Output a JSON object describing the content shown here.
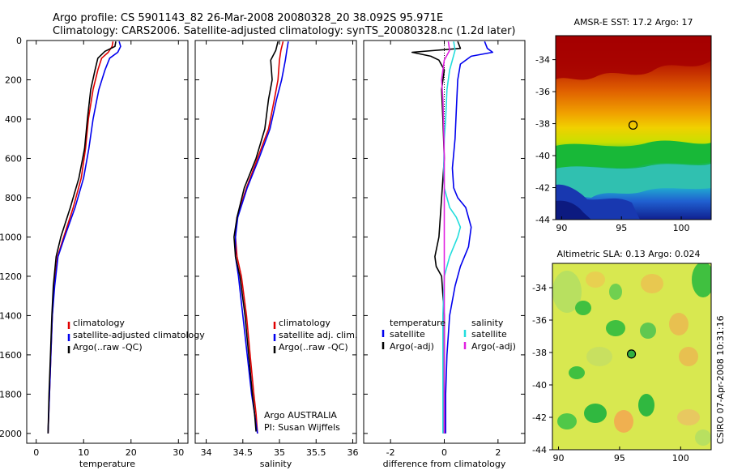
{
  "figure": {
    "title_line1": "Argo profile: CS 5901143_82 26-Mar-2008 20080328_20 38.092S 95.971E",
    "title_line2": "Climatology: CARS2006. Satellite-adjusted climatology: synTS_20080328.nc (1.2d later)",
    "side_note": "CSIRO 07-Apr-2008 10:31:16",
    "colors": {
      "climatology": "#e00000",
      "satellite": "#0000ee",
      "argo": "#000000",
      "sat_sal": "#22dddd",
      "argo_sal": "#e020e0"
    }
  },
  "chart_data": [
    {
      "id": "temperature",
      "type": "line",
      "xlabel": "temperature",
      "ylabel": "",
      "xlim": [
        -2,
        32
      ],
      "ylim": [
        2050,
        0
      ],
      "xticks": [
        0,
        10,
        20,
        30
      ],
      "yticks": [
        0,
        200,
        400,
        600,
        800,
        1000,
        1200,
        1400,
        1600,
        1800,
        2000
      ],
      "legend": [
        "climatology",
        "satellite-adjusted climatology",
        "Argo(..raw -QC)"
      ],
      "legend_placement": "lower-left",
      "series": [
        {
          "name": "climatology",
          "color": "#e00000",
          "x": [
            16.2,
            16.0,
            15.2,
            13.8,
            13.0,
            12.0,
            11.0,
            10.4,
            9.5,
            7.8,
            5.8,
            4.5,
            3.8,
            3.4,
            3.1,
            2.8,
            2.5
          ],
          "y": [
            5,
            30,
            60,
            90,
            150,
            250,
            400,
            550,
            700,
            850,
            1000,
            1100,
            1250,
            1400,
            1600,
            1800,
            2000
          ]
        },
        {
          "name": "satellite-adjusted climatology",
          "color": "#0000ee",
          "x": [
            17.5,
            17.8,
            17.2,
            15.5,
            14.5,
            13.2,
            12.0,
            11.1,
            10.0,
            8.2,
            6.0,
            4.6,
            3.9,
            3.4,
            3.1,
            2.8,
            2.5
          ],
          "y": [
            5,
            30,
            60,
            90,
            150,
            250,
            400,
            550,
            700,
            850,
            1000,
            1100,
            1250,
            1400,
            1600,
            1800,
            2000
          ]
        },
        {
          "name": "Argo(..raw -QC)",
          "color": "#000000",
          "x": [
            16.8,
            16.6,
            14.5,
            13.0,
            12.4,
            11.5,
            10.8,
            10.2,
            9.0,
            7.2,
            5.2,
            4.2,
            3.6,
            3.3,
            3.0,
            2.7,
            2.5
          ],
          "y": [
            5,
            30,
            55,
            90,
            150,
            250,
            400,
            550,
            700,
            850,
            1000,
            1100,
            1250,
            1400,
            1600,
            1800,
            2000
          ]
        }
      ]
    },
    {
      "id": "salinity",
      "type": "line",
      "xlabel": "salinity",
      "ylabel": "",
      "xlim": [
        33.85,
        36.05
      ],
      "ylim": [
        2050,
        0
      ],
      "xticks": [
        34,
        34.5,
        35,
        35.5,
        36
      ],
      "yticks": [
        0,
        200,
        400,
        600,
        800,
        1000,
        1200,
        1400,
        1600,
        1800,
        2000
      ],
      "legend": [
        "climatology",
        "satellite adj. clim.",
        "Argo(..raw -QC)"
      ],
      "legend_placement": "lower-right",
      "annotation": [
        "Argo AUSTRALIA",
        "PI: Susan Wijffels"
      ],
      "series": [
        {
          "name": "climatology",
          "color": "#e00000",
          "x": [
            35.05,
            35.02,
            35.0,
            34.98,
            34.93,
            34.85,
            34.7,
            34.55,
            34.42,
            34.4,
            34.42,
            34.48,
            34.55,
            34.6,
            34.65,
            34.68,
            34.7
          ],
          "y": [
            5,
            50,
            100,
            200,
            300,
            450,
            600,
            750,
            900,
            1000,
            1100,
            1200,
            1400,
            1600,
            1800,
            1900,
            2000
          ]
        },
        {
          "name": "satellite adj. clim.",
          "color": "#0000ee",
          "x": [
            35.12,
            35.1,
            35.08,
            35.03,
            34.96,
            34.87,
            34.72,
            34.56,
            34.43,
            34.4,
            34.4,
            34.44,
            34.5,
            34.56,
            34.62,
            34.66,
            34.7
          ],
          "y": [
            5,
            50,
            100,
            200,
            300,
            450,
            600,
            750,
            900,
            1000,
            1100,
            1200,
            1400,
            1600,
            1800,
            1900,
            2000
          ]
        },
        {
          "name": "Argo(..raw -QC)",
          "color": "#000000",
          "x": [
            34.98,
            34.95,
            34.88,
            34.9,
            34.85,
            34.8,
            34.68,
            34.52,
            34.42,
            34.38,
            34.4,
            34.46,
            34.53,
            34.58,
            34.63,
            34.66,
            34.68
          ],
          "y": [
            5,
            50,
            100,
            200,
            300,
            450,
            600,
            750,
            900,
            1000,
            1100,
            1200,
            1400,
            1600,
            1800,
            1900,
            1990
          ]
        }
      ]
    },
    {
      "id": "difference",
      "type": "line",
      "xlabel": "difference from climatology",
      "ylabel": "",
      "xlim": [
        -3,
        3
      ],
      "ylim": [
        2050,
        0
      ],
      "xticks": [
        -2,
        0,
        2
      ],
      "yticks": [
        0,
        200,
        400,
        600,
        800,
        1000,
        1200,
        1400,
        1600,
        1800,
        2000
      ],
      "legend_header": [
        "temperature",
        "salinity"
      ],
      "legend": [
        "satellite",
        "Argo(-adj)",
        "satellite",
        "Argo(-adj)"
      ],
      "legend_placement": "lower-center",
      "series": [
        {
          "name": "temperature satellite",
          "color": "#0000ee",
          "x": [
            1.5,
            1.6,
            1.8,
            1.0,
            0.6,
            0.5,
            0.45,
            0.4,
            0.3,
            0.35,
            0.5,
            0.8,
            1.0,
            0.9,
            0.6,
            0.4,
            0.2,
            0.1,
            0.05,
            0.05
          ],
          "y": [
            5,
            40,
            60,
            80,
            120,
            200,
            350,
            500,
            650,
            750,
            800,
            850,
            950,
            1050,
            1150,
            1250,
            1400,
            1600,
            1800,
            2000
          ]
        },
        {
          "name": "temperature Argo(-adj)",
          "color": "#000000",
          "x": [
            0.5,
            0.6,
            -1.2,
            -0.5,
            -0.2,
            0.0,
            -0.1,
            -0.05,
            0.0,
            -0.1,
            -0.2,
            -0.35,
            -0.3,
            -0.1,
            0.0,
            0.0,
            0.0
          ],
          "y": [
            5,
            40,
            60,
            80,
            100,
            150,
            250,
            400,
            600,
            800,
            1000,
            1100,
            1150,
            1200,
            1400,
            1700,
            2000
          ]
        },
        {
          "name": "salinity satellite",
          "color": "#22dddd",
          "x": [
            0.35,
            0.4,
            0.3,
            0.2,
            0.1,
            0.05,
            0.0,
            -0.02,
            0.0,
            0.2,
            0.45,
            0.6,
            0.5,
            0.2,
            0.0,
            -0.05,
            -0.05,
            -0.05
          ],
          "y": [
            5,
            50,
            100,
            150,
            250,
            400,
            500,
            650,
            750,
            850,
            900,
            950,
            1000,
            1100,
            1200,
            1400,
            1700,
            2000
          ]
        },
        {
          "name": "salinity Argo(-adj)",
          "color": "#e020e0",
          "x": [
            0.15,
            0.2,
            0.0,
            -0.1,
            -0.05,
            -0.02,
            0.0,
            0.0,
            0.0,
            0.0,
            0.0
          ],
          "y": [
            5,
            50,
            100,
            200,
            300,
            450,
            600,
            800,
            1200,
            1600,
            2000
          ]
        }
      ]
    },
    {
      "id": "sst_map",
      "type": "heatmap",
      "title": "AMSR-E SST: 17.2 Argo: 17",
      "xlim": [
        89.5,
        102.5
      ],
      "ylim": [
        -44,
        -32.5
      ],
      "xticks": [
        90,
        95,
        100
      ],
      "yticks": [
        -34,
        -36,
        -38,
        -40,
        -42,
        -44
      ],
      "marker": {
        "lon": 95.971,
        "lat": -38.092
      }
    },
    {
      "id": "sla_map",
      "type": "heatmap",
      "title": "Altimetric SLA: 0.13 Argo: 0.024",
      "xlim": [
        89.5,
        102.5
      ],
      "ylim": [
        -44,
        -32.5
      ],
      "xticks": [
        90,
        95,
        100
      ],
      "yticks": [
        -34,
        -36,
        -38,
        -40,
        -42,
        -44
      ],
      "marker": {
        "lon": 95.971,
        "lat": -38.092
      }
    }
  ]
}
